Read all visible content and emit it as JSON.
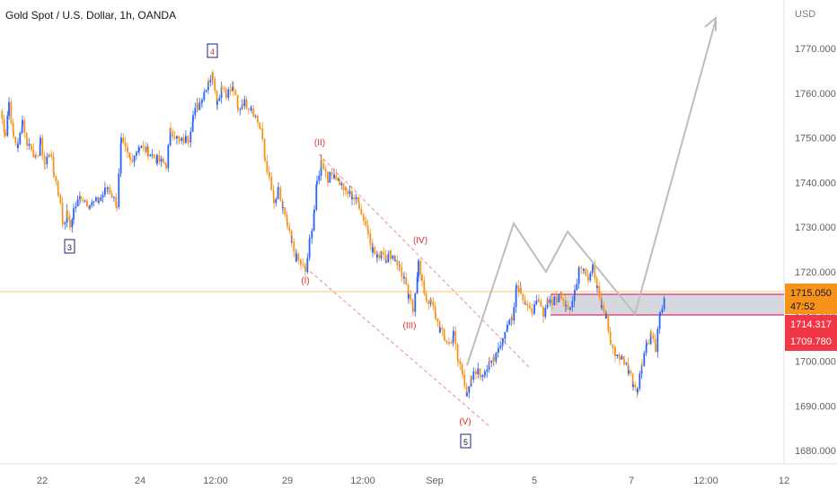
{
  "header": {
    "symbol_title": "Gold Spot / U.S. Dollar, 1h, OANDA"
  },
  "price_axis": {
    "currency": "USD",
    "ticks": [
      "1770.000",
      "1760.000",
      "1750.000",
      "1740.000",
      "1730.000",
      "1720.000",
      "1710.000",
      "1700.000",
      "1690.000",
      "1680.000"
    ]
  },
  "time_axis": {
    "ticks": [
      "22",
      "24",
      "12:00",
      "29",
      "12:00",
      "Sep",
      "5",
      "7",
      "12:00",
      "12"
    ]
  },
  "price_tags": {
    "last_price": "1715.050",
    "countdown": "47:52",
    "zone_top": "1714.317",
    "zone_bottom": "1709.780"
  },
  "wave_labels": {
    "w3": "3",
    "w4": "4",
    "w5": "5",
    "wI": "(I)",
    "wII": "(II)",
    "wIII": "(III)",
    "wIV": "(IV)",
    "wV": "(V)"
  },
  "chart_data": {
    "type": "candlestick",
    "title": "Gold Spot / U.S. Dollar, 1h, OANDA",
    "yaxis_unit": "USD",
    "ylim": [
      1677,
      1778
    ],
    "x_ticks": [
      "22",
      "24",
      "12:00",
      "29",
      "12:00",
      "Sep",
      "5",
      "7",
      "12:00",
      "12"
    ],
    "y_ticks": [
      1770,
      1760,
      1750,
      1740,
      1730,
      1720,
      1710,
      1700,
      1690,
      1680
    ],
    "price_path": [
      [
        0,
        1756
      ],
      [
        6,
        1751
      ],
      [
        10,
        1758
      ],
      [
        15,
        1750
      ],
      [
        20,
        1748
      ],
      [
        25,
        1754
      ],
      [
        30,
        1749
      ],
      [
        35,
        1748
      ],
      [
        40,
        1745
      ],
      [
        45,
        1749
      ],
      [
        50,
        1744
      ],
      [
        55,
        1747
      ],
      [
        60,
        1742
      ],
      [
        65,
        1738
      ],
      [
        70,
        1731
      ],
      [
        75,
        1733
      ],
      [
        78,
        1730
      ],
      [
        82,
        1734
      ],
      [
        90,
        1737
      ],
      [
        100,
        1735
      ],
      [
        110,
        1736
      ],
      [
        120,
        1739
      ],
      [
        130,
        1735
      ],
      [
        135,
        1749
      ],
      [
        145,
        1745
      ],
      [
        155,
        1748
      ],
      [
        165,
        1747
      ],
      [
        175,
        1745
      ],
      [
        185,
        1744
      ],
      [
        190,
        1752
      ],
      [
        200,
        1749
      ],
      [
        210,
        1750
      ],
      [
        215,
        1755
      ],
      [
        220,
        1757
      ],
      [
        225,
        1759
      ],
      [
        232,
        1763
      ],
      [
        237,
        1764
      ],
      [
        242,
        1758
      ],
      [
        247,
        1762
      ],
      [
        252,
        1760
      ],
      [
        260,
        1761
      ],
      [
        265,
        1756
      ],
      [
        270,
        1758
      ],
      [
        280,
        1757
      ],
      [
        290,
        1752
      ],
      [
        295,
        1745
      ],
      [
        300,
        1741
      ],
      [
        305,
        1735
      ],
      [
        310,
        1738
      ],
      [
        315,
        1734
      ],
      [
        320,
        1730
      ],
      [
        325,
        1726
      ],
      [
        330,
        1723
      ],
      [
        335,
        1722
      ],
      [
        340,
        1720
      ],
      [
        345,
        1727
      ],
      [
        350,
        1734
      ],
      [
        353,
        1740
      ],
      [
        358,
        1745
      ],
      [
        365,
        1741
      ],
      [
        372,
        1742
      ],
      [
        378,
        1740
      ],
      [
        385,
        1738
      ],
      [
        392,
        1737
      ],
      [
        400,
        1735
      ],
      [
        405,
        1732
      ],
      [
        410,
        1729
      ],
      [
        415,
        1725
      ],
      [
        420,
        1723
      ],
      [
        425,
        1725
      ],
      [
        430,
        1723
      ],
      [
        435,
        1724
      ],
      [
        440,
        1723
      ],
      [
        445,
        1721
      ],
      [
        450,
        1718
      ],
      [
        455,
        1714
      ],
      [
        460,
        1712
      ],
      [
        466,
        1722
      ],
      [
        470,
        1717
      ],
      [
        475,
        1714
      ],
      [
        480,
        1713
      ],
      [
        485,
        1710
      ],
      [
        490,
        1707
      ],
      [
        495,
        1705
      ],
      [
        500,
        1704
      ],
      [
        505,
        1706
      ],
      [
        510,
        1700
      ],
      [
        515,
        1698
      ],
      [
        520,
        1692
      ],
      [
        525,
        1696
      ],
      [
        530,
        1698
      ],
      [
        535,
        1697
      ],
      [
        540,
        1698
      ],
      [
        545,
        1699
      ],
      [
        550,
        1701
      ],
      [
        555,
        1703
      ],
      [
        560,
        1705
      ],
      [
        565,
        1708
      ],
      [
        570,
        1710
      ],
      [
        575,
        1717
      ],
      [
        580,
        1716
      ],
      [
        585,
        1713
      ],
      [
        590,
        1711
      ],
      [
        595,
        1712
      ],
      [
        600,
        1713
      ],
      [
        605,
        1711
      ],
      [
        610,
        1714
      ],
      [
        615,
        1713
      ],
      [
        620,
        1714
      ],
      [
        625,
        1715
      ],
      [
        630,
        1713
      ],
      [
        635,
        1712
      ],
      [
        640,
        1715
      ],
      [
        645,
        1722
      ],
      [
        650,
        1721
      ],
      [
        655,
        1719
      ],
      [
        660,
        1721
      ],
      [
        665,
        1716
      ],
      [
        670,
        1712
      ],
      [
        675,
        1710
      ],
      [
        680,
        1704
      ],
      [
        685,
        1702
      ],
      [
        690,
        1701
      ],
      [
        695,
        1700
      ],
      [
        700,
        1698
      ],
      [
        705,
        1695
      ],
      [
        710,
        1694
      ],
      [
        715,
        1700
      ],
      [
        720,
        1704
      ],
      [
        725,
        1706
      ],
      [
        730,
        1703
      ],
      [
        735,
        1710
      ],
      [
        740,
        1715
      ]
    ],
    "elliott_waves": [
      {
        "label": "3",
        "price": 1729
      },
      {
        "label": "4",
        "price": 1765
      },
      {
        "label": "(I)",
        "price": 1721
      },
      {
        "label": "(II)",
        "price": 1746
      },
      {
        "label": "(III)",
        "price": 1711
      },
      {
        "label": "(IV)",
        "price": 1724
      },
      {
        "label": "(V)",
        "price": 1691
      },
      {
        "label": "5",
        "price": 1691
      }
    ],
    "projection_path": [
      [
        520,
        1692
      ],
      [
        572,
        1730
      ],
      [
        608,
        1719
      ],
      [
        632,
        1729
      ],
      [
        707,
        1710
      ],
      [
        797,
        1776
      ]
    ],
    "channel": {
      "upper": [
        [
          355,
          1744
        ],
        [
          590,
          1713
        ]
      ],
      "lower": [
        [
          340,
          1720
        ],
        [
          545,
          1687
        ]
      ]
    },
    "last_price": 1715.05,
    "horizontal_line": 1715.05,
    "zone": {
      "top": 1714.317,
      "bottom": 1709.78
    },
    "colors": {
      "up": "#2962ff",
      "down": "#f7931a",
      "zone_fill": "#c9c9d6",
      "zone_line": "#d6336c",
      "tag_price": "#f7931a",
      "tag_zone": "#f23645",
      "wave_label": "#e03131",
      "projection": "#bdbdbd"
    }
  }
}
